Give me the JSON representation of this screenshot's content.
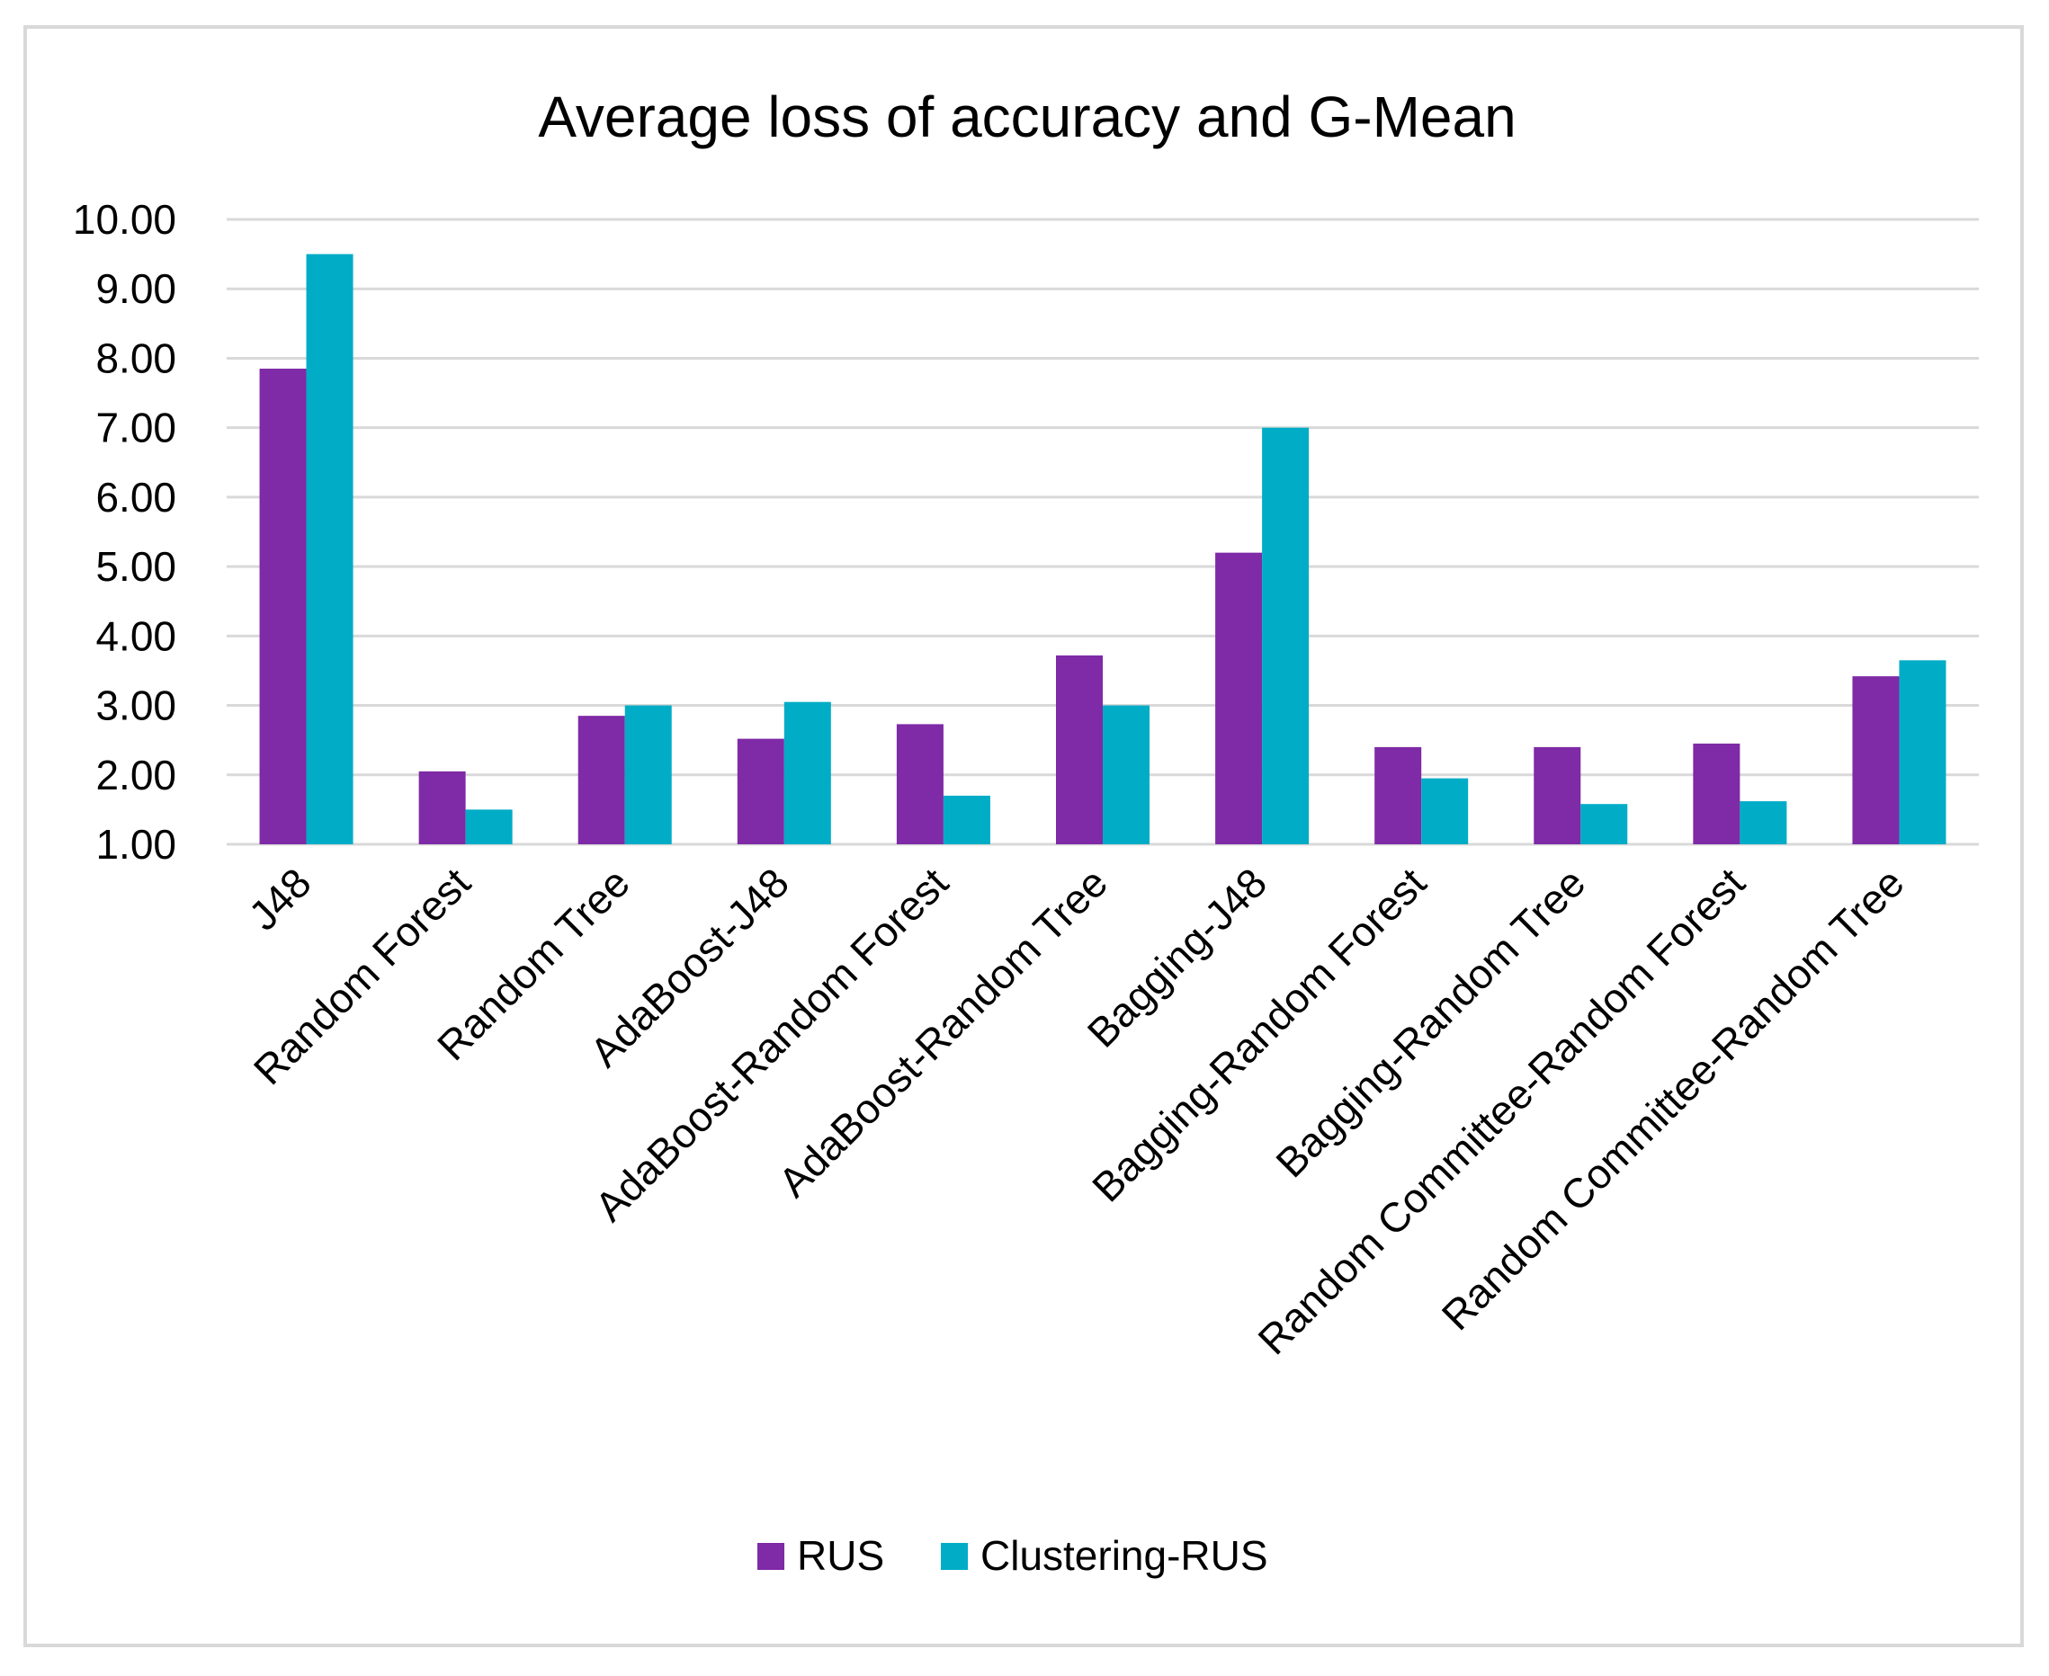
{
  "chart_data": {
    "type": "bar",
    "title": "Average loss of accuracy and G-Mean",
    "xlabel": "",
    "ylabel": "",
    "ylim": [
      1.0,
      10.0
    ],
    "yticks": [
      "1.00",
      "2.00",
      "3.00",
      "4.00",
      "5.00",
      "6.00",
      "7.00",
      "8.00",
      "9.00",
      "10.00"
    ],
    "ytick_values": [
      1,
      2,
      3,
      4,
      5,
      6,
      7,
      8,
      9,
      10
    ],
    "grid": true,
    "legend_position": "bottom",
    "categories": [
      "J48",
      "Random Forest",
      "Random Tree",
      "AdaBoost-J48",
      "AdaBoost-Random Forest",
      "AdaBoost-Random Tree",
      "Bagging-J48",
      "Bagging-Random Forest",
      "Bagging-Random Tree",
      "Random Committee-Random Forest",
      "Random Committee-Random Tree"
    ],
    "series": [
      {
        "name": "RUS",
        "color": "#7F2AA6",
        "values": [
          7.85,
          2.05,
          2.85,
          2.52,
          2.73,
          3.72,
          5.2,
          2.4,
          2.4,
          2.45,
          3.42
        ]
      },
      {
        "name": "Clustering-RUS",
        "color": "#00ACC6",
        "values": [
          9.5,
          1.5,
          3.0,
          3.05,
          1.7,
          3.0,
          7.0,
          1.95,
          1.58,
          1.62,
          3.65
        ]
      }
    ]
  }
}
